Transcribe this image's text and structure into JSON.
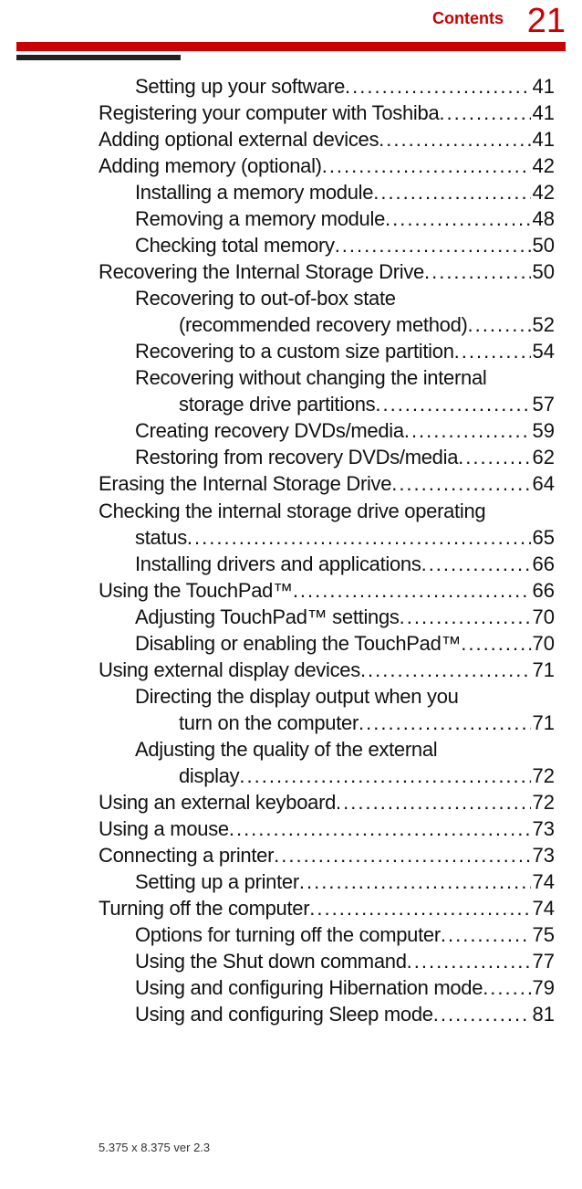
{
  "header": {
    "label": "Contents",
    "page_number": "21"
  },
  "colors": {
    "accent": "#cc0000",
    "text": "#111111",
    "bg": "#ffffff"
  },
  "footer": "5.375 x 8.375 ver 2.3",
  "toc": [
    {
      "level": 1,
      "title": "Setting up your software",
      "page": "41"
    },
    {
      "level": 0,
      "title": "Registering your computer with Toshiba",
      "page": "41"
    },
    {
      "level": 0,
      "title": "Adding optional external devices",
      "page": "41"
    },
    {
      "level": 0,
      "title": "Adding memory (optional)",
      "page": "42"
    },
    {
      "level": 1,
      "title": "Installing a memory module",
      "page": "42"
    },
    {
      "level": 1,
      "title": "Removing a memory module",
      "page": "48"
    },
    {
      "level": 1,
      "title": "Checking total memory",
      "page": "50"
    },
    {
      "level": 0,
      "title": "Recovering the Internal Storage Drive",
      "page": "50"
    },
    {
      "level": 1,
      "title": "Recovering to out-of-box state",
      "cont": "(recommended recovery method)",
      "contLevel": 2,
      "page": "52"
    },
    {
      "level": 1,
      "title": "Recovering to a custom size partition",
      "page": "54"
    },
    {
      "level": 1,
      "title": "Recovering without changing the internal",
      "cont": "storage drive partitions",
      "contLevel": 2,
      "page": "57"
    },
    {
      "level": 1,
      "title": "Creating recovery DVDs/media",
      "page": "59"
    },
    {
      "level": 1,
      "title": "Restoring from recovery DVDs/media",
      "page": "62"
    },
    {
      "level": 0,
      "title": "Erasing the Internal Storage Drive",
      "page": "64"
    },
    {
      "level": 0,
      "title": "Checking the internal storage drive operating",
      "cont": "status",
      "contLevel": 1,
      "page": "65"
    },
    {
      "level": 1,
      "title": "Installing drivers and applications",
      "page": "66"
    },
    {
      "level": 0,
      "title": "Using the TouchPad™",
      "page": "66"
    },
    {
      "level": 1,
      "title": "Adjusting TouchPad™ settings",
      "page": "70"
    },
    {
      "level": 1,
      "title": "Disabling or enabling the TouchPad™",
      "page": "70"
    },
    {
      "level": 0,
      "title": "Using external display devices",
      "page": "71"
    },
    {
      "level": 1,
      "title": "Directing the display output when you",
      "cont": "turn on the computer",
      "contLevel": 2,
      "page": "71"
    },
    {
      "level": 1,
      "title": "Adjusting the quality of the external",
      "cont": "display",
      "contLevel": 2,
      "page": "72"
    },
    {
      "level": 0,
      "title": "Using an external keyboard",
      "page": "72"
    },
    {
      "level": 0,
      "title": "Using a mouse",
      "page": "73"
    },
    {
      "level": 0,
      "title": "Connecting a printer",
      "page": "73"
    },
    {
      "level": 1,
      "title": "Setting up a printer",
      "page": "74"
    },
    {
      "level": 0,
      "title": "Turning off the computer",
      "page": "74"
    },
    {
      "level": 1,
      "title": "Options for turning off the computer",
      "page": "75"
    },
    {
      "level": 1,
      "title": "Using the Shut down command",
      "page": "77"
    },
    {
      "level": 1,
      "title": "Using and configuring Hibernation mode",
      "page": "79"
    },
    {
      "level": 1,
      "title": "Using and configuring Sleep mode",
      "page": "81"
    }
  ]
}
